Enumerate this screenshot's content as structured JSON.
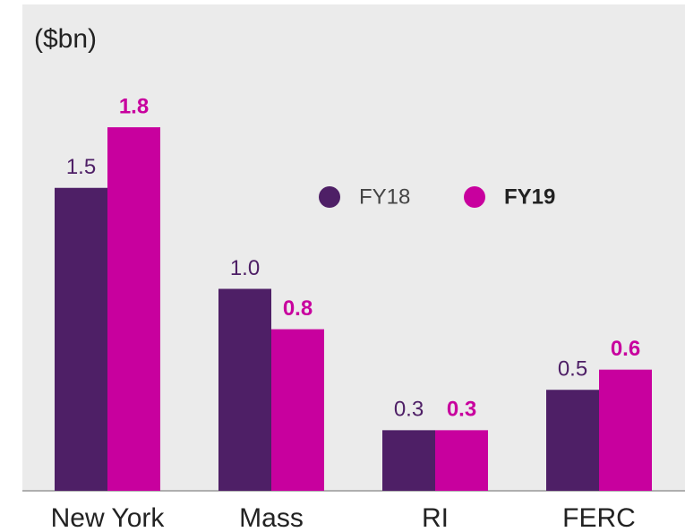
{
  "chart_data": {
    "type": "bar",
    "y_label": "($bn)",
    "categories": [
      "New York",
      "Mass",
      "RI",
      "FERC"
    ],
    "series": [
      {
        "name": "FY18",
        "color": "#4e1f66",
        "values": [
          1.5,
          1.0,
          0.3,
          0.5
        ],
        "value_labels": [
          "1.5",
          "1.0",
          "0.3",
          "0.5"
        ]
      },
      {
        "name": "FY19",
        "color": "#c8009e",
        "values": [
          1.8,
          0.8,
          0.3,
          0.6
        ],
        "value_labels": [
          "1.8",
          "0.8",
          "0.3",
          "0.6"
        ]
      }
    ],
    "ylim": [
      0,
      2.0
    ],
    "legend": "upper right"
  }
}
